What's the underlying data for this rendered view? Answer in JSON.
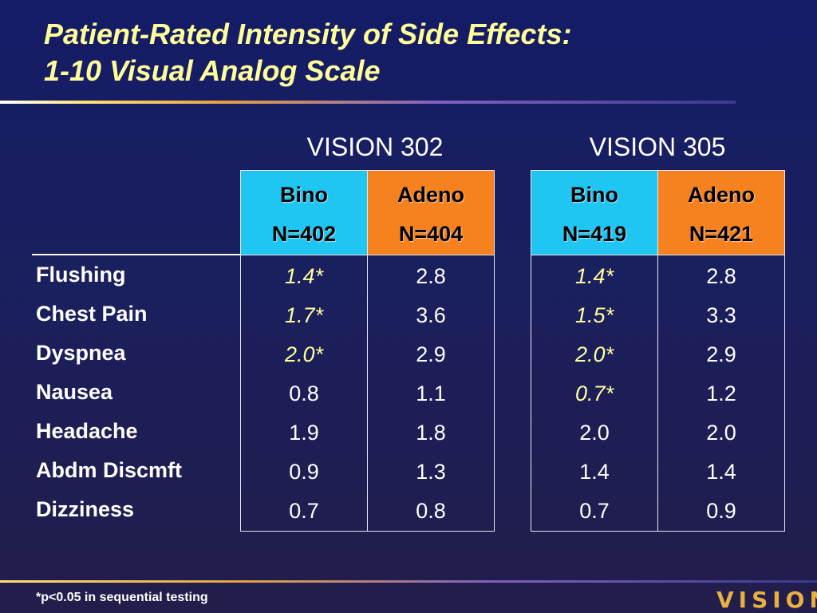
{
  "title": {
    "line1": "Patient-Rated Intensity of Side Effects:",
    "line2": "1-10 Visual Analog Scale"
  },
  "groups": [
    {
      "label": "VISION 302"
    },
    {
      "label": "VISION 305"
    }
  ],
  "row_labels": [
    "Flushing",
    "Chest Pain",
    "Dyspnea",
    "Nausea",
    "Headache",
    "Abdm Discmft",
    "Dizziness"
  ],
  "columns": [
    {
      "drug": "Bino",
      "n": "N=402",
      "values": [
        "1.4*",
        "1.7*",
        "2.0*",
        "0.8",
        "1.9",
        "0.9",
        "0.7"
      ],
      "significant": [
        true,
        true,
        true,
        false,
        false,
        false,
        false
      ]
    },
    {
      "drug": "Adeno",
      "n": "N=404",
      "values": [
        "2.8",
        "3.6",
        "2.9",
        "1.1",
        "1.8",
        "1.3",
        "0.8"
      ],
      "significant": [
        false,
        false,
        false,
        false,
        false,
        false,
        false
      ]
    },
    {
      "drug": "Bino",
      "n": "N=419",
      "values": [
        "1.4*",
        "1.5*",
        "2.0*",
        "0.7*",
        "2.0",
        "1.4",
        "0.7"
      ],
      "significant": [
        true,
        true,
        true,
        true,
        false,
        false,
        false
      ]
    },
    {
      "drug": "Adeno",
      "n": "N=421",
      "values": [
        "2.8",
        "3.3",
        "2.9",
        "1.2",
        "2.0",
        "1.4",
        "0.9"
      ],
      "significant": [
        false,
        false,
        false,
        false,
        false,
        false,
        false
      ]
    }
  ],
  "footnote": "*p<0.05 in sequential testing",
  "logo": "VISION",
  "colors": {
    "background": "#1a1f5e",
    "title": "#ffff99",
    "bino_header": "#1fc6f2",
    "adeno_header": "#f5821f",
    "significant_value": "#ffff99"
  }
}
